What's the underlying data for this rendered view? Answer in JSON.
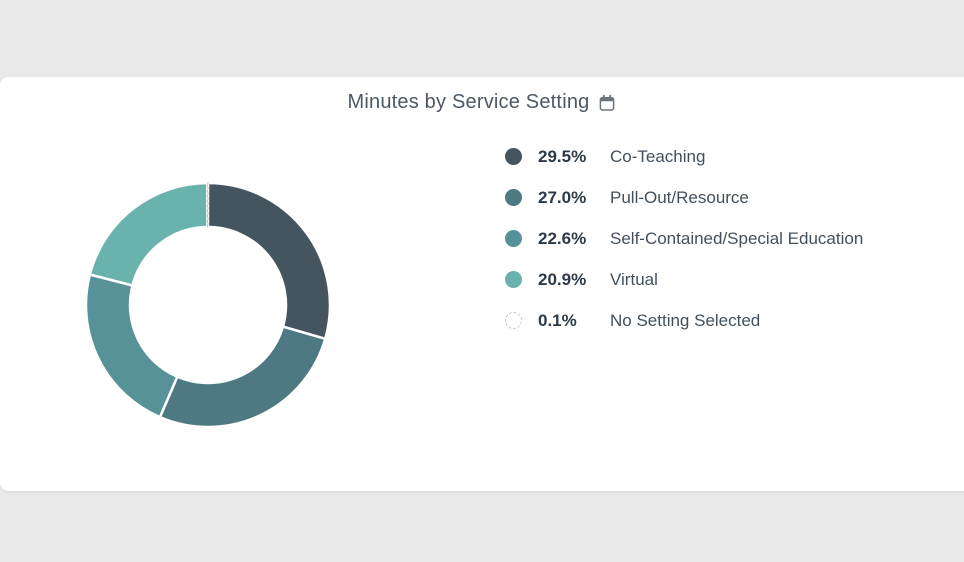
{
  "page": {
    "background_color": "#e9e9e9",
    "card_background_color": "#ffffff"
  },
  "header": {
    "title": "Minutes by Service Setting",
    "icon": "calendar-icon",
    "icon_color": "#6b7580",
    "title_color": "#4d5866"
  },
  "chart_data": {
    "type": "pie",
    "subtype": "donut",
    "title": "Minutes by Service Setting",
    "unit": "%",
    "start_angle_deg": 0,
    "direction": "clockwise",
    "legend_position": "right",
    "categories": [
      "Co-Teaching",
      "Pull-Out/Resource",
      "Self-Contained/Special Education",
      "Virtual",
      "No Setting Selected"
    ],
    "values": [
      29.5,
      27.0,
      22.6,
      20.9,
      0.1
    ],
    "slices": [
      {
        "label": "Co-Teaching",
        "value": 29.5,
        "display": "29.5%",
        "color": "#455560"
      },
      {
        "label": "Pull-Out/Resource",
        "value": 27.0,
        "display": "27.0%",
        "color": "#4e7982"
      },
      {
        "label": "Self-Contained/Special Education",
        "value": 22.6,
        "display": "22.6%",
        "color": "#579298"
      },
      {
        "label": "Virtual",
        "value": 20.9,
        "display": "20.9%",
        "color": "#6ab3ad"
      },
      {
        "label": "No Setting Selected",
        "value": 0.1,
        "display": "0.1%",
        "color": "#ffffff",
        "empty": true,
        "border": "dashed"
      }
    ],
    "slice_border_color": "#ffffff",
    "empty_slice_dash_color": "#b8bfc5",
    "legend_percent_color": "#2c3a47",
    "legend_label_color": "#42505d"
  }
}
